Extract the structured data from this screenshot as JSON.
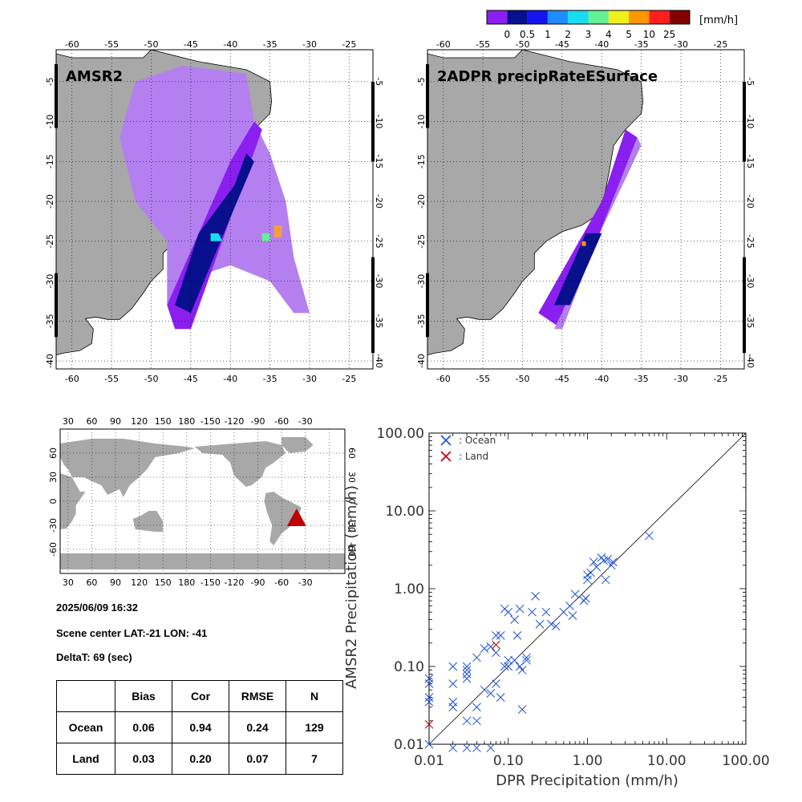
{
  "colorbar": {
    "unit": "[mm/h]",
    "ticks": [
      "0",
      "0.5",
      "1",
      "2",
      "3",
      "4",
      "5",
      "10",
      "25"
    ],
    "colors": [
      "#8a1ff0",
      "#08108e",
      "#1414f0",
      "#1e8cff",
      "#19dcf0",
      "#64f096",
      "#f0f01e",
      "#ff9600",
      "#ff1e1e",
      "#820000"
    ]
  },
  "maps": {
    "lon_ticks": [
      "-60",
      "-55",
      "-50",
      "-45",
      "-40",
      "-35",
      "-30",
      "-25"
    ],
    "lat_ticks": [
      "-5",
      "-10",
      "-15",
      "-20",
      "-25",
      "-30",
      "-35",
      "-40"
    ],
    "left_title": "AMSR2",
    "right_title": "2ADPR precipRateESurface"
  },
  "world": {
    "lon_ticks": [
      "30",
      "60",
      "90",
      "120",
      "150",
      "180",
      "-150",
      "-120",
      "-90",
      "-60",
      "-30"
    ],
    "lat_ticks": [
      "60",
      "30",
      "0",
      "-30",
      "-60"
    ]
  },
  "info": {
    "datetime": "2025/06/09 16:32",
    "scene_center": "Scene center LAT:-21   LON: -41",
    "delta": "DeltaT:   69 (sec)"
  },
  "stats": {
    "headers": [
      "Bias",
      "Cor",
      "RMSE",
      "N"
    ],
    "rows": [
      {
        "label": "Ocean",
        "values": [
          "0.06",
          "0.94",
          "0.24",
          "129"
        ]
      },
      {
        "label": "Land",
        "values": [
          "0.03",
          "0.20",
          "0.07",
          "7"
        ]
      }
    ]
  },
  "chart_data": {
    "type": "scatter",
    "xlabel": "DPR Precipitation (mm/h)",
    "ylabel": "AMSR2 Precipitation (mm/h)",
    "xscale": "log",
    "yscale": "log",
    "xlim": [
      0.01,
      100
    ],
    "ylim": [
      0.01,
      100
    ],
    "tick_labels": [
      "0.01",
      "0.10",
      "1.00",
      "10.00",
      "100.00"
    ],
    "legend_placement": "top-left",
    "series": [
      {
        "name": ": Ocean",
        "color": "#1a4fd6",
        "points": [
          [
            0.01,
            0.07
          ],
          [
            0.01,
            0.06
          ],
          [
            0.01,
            0.04
          ],
          [
            0.01,
            0.035
          ],
          [
            0.01,
            0.01
          ],
          [
            0.02,
            0.1
          ],
          [
            0.02,
            0.06
          ],
          [
            0.02,
            0.035
          ],
          [
            0.02,
            0.03
          ],
          [
            0.02,
            0.009
          ],
          [
            0.03,
            0.1
          ],
          [
            0.03,
            0.09
          ],
          [
            0.03,
            0.08
          ],
          [
            0.03,
            0.07
          ],
          [
            0.03,
            0.02
          ],
          [
            0.03,
            0.009
          ],
          [
            0.04,
            0.13
          ],
          [
            0.04,
            0.03
          ],
          [
            0.04,
            0.02
          ],
          [
            0.04,
            0.009
          ],
          [
            0.05,
            0.17
          ],
          [
            0.05,
            0.05
          ],
          [
            0.06,
            0.18
          ],
          [
            0.06,
            0.045
          ],
          [
            0.06,
            0.009
          ],
          [
            0.07,
            0.25
          ],
          [
            0.07,
            0.06
          ],
          [
            0.07,
            0.15
          ],
          [
            0.08,
            0.25
          ],
          [
            0.08,
            0.04
          ],
          [
            0.09,
            0.55
          ],
          [
            0.09,
            0.1
          ],
          [
            0.1,
            0.5
          ],
          [
            0.1,
            0.12
          ],
          [
            0.1,
            0.1
          ],
          [
            0.12,
            0.4
          ],
          [
            0.12,
            0.12
          ],
          [
            0.13,
            0.25
          ],
          [
            0.14,
            0.55
          ],
          [
            0.14,
            0.1
          ],
          [
            0.15,
            0.09
          ],
          [
            0.15,
            0.028
          ],
          [
            0.17,
            0.13
          ],
          [
            0.17,
            0.12
          ],
          [
            0.2,
            0.5
          ],
          [
            0.22,
            0.8
          ],
          [
            0.25,
            0.35
          ],
          [
            0.3,
            0.5
          ],
          [
            0.35,
            0.35
          ],
          [
            0.4,
            0.33
          ],
          [
            0.5,
            0.5
          ],
          [
            0.6,
            0.6
          ],
          [
            0.65,
            0.45
          ],
          [
            0.7,
            0.85
          ],
          [
            0.9,
            0.7
          ],
          [
            0.95,
            0.75
          ],
          [
            1.0,
            1.3
          ],
          [
            1.0,
            1.5
          ],
          [
            1.1,
            1.6
          ],
          [
            1.2,
            2.2
          ],
          [
            1.3,
            1.9
          ],
          [
            1.5,
            2.5
          ],
          [
            1.6,
            2.3
          ],
          [
            1.7,
            1.3
          ],
          [
            1.8,
            2.4
          ],
          [
            2.0,
            2.0
          ],
          [
            2.1,
            2.2
          ],
          [
            6.0,
            4.8
          ]
        ]
      },
      {
        "name": ": Land",
        "color": "#c00000",
        "points": [
          [
            0.01,
            0.018
          ],
          [
            0.07,
            0.19
          ]
        ]
      }
    ]
  }
}
